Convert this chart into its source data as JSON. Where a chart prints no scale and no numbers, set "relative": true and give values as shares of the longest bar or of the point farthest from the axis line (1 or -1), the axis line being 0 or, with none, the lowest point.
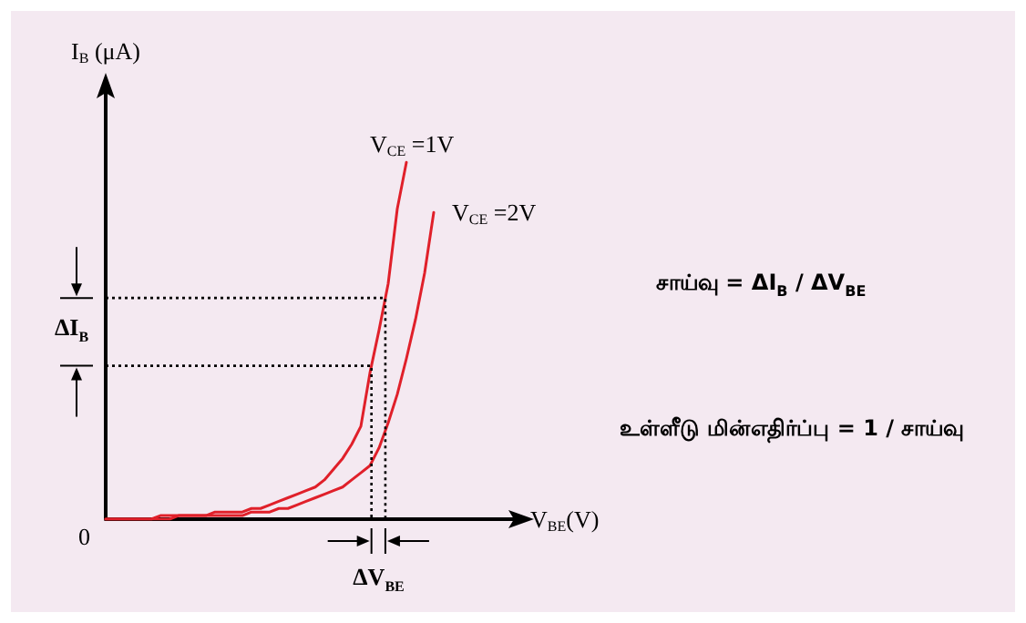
{
  "chart_data": {
    "type": "line",
    "relative": true,
    "xlabel": "V$_{BE}$(V)",
    "ylabel": "I$_{B}$ (μA)",
    "categories": [
      null,
      null,
      null,
      null,
      null,
      null,
      null,
      null,
      null,
      null,
      null,
      null,
      null,
      null,
      null,
      null,
      null,
      null,
      null,
      null,
      null,
      null,
      null,
      null,
      null,
      null,
      null,
      null,
      null,
      null,
      null,
      null,
      null,
      null,
      null,
      null,
      null,
      null,
      null,
      null,
      null,
      null,
      null,
      null,
      null
    ],
    "series": [
      {
        "name": "V$_{CE}$ =1V",
        "color": "#e0202a",
        "values": [
          0,
          0,
          0,
          0,
          0,
          0,
          0.01,
          0.01,
          0.01,
          0.01,
          0.01,
          0.01,
          0.02,
          0.02,
          0.02,
          0.02,
          0.03,
          0.03,
          0.04,
          0.05,
          0.06,
          0.07,
          0.08,
          0.09,
          0.11,
          0.14,
          0.17,
          0.21,
          0.26,
          0.41,
          0.53,
          0.66,
          0.87,
          1,
          null,
          null,
          null,
          null,
          null,
          null,
          null,
          null,
          null,
          null,
          null
        ]
      },
      {
        "name": "V$_{CE}$ =2V",
        "color": "#e0202a",
        "values": [
          0,
          0,
          0,
          0,
          0,
          0,
          0,
          0,
          0.01,
          0.01,
          0.01,
          0.01,
          0.01,
          0.01,
          0.01,
          0.01,
          0.02,
          0.02,
          0.02,
          0.03,
          0.03,
          0.04,
          0.05,
          0.06,
          0.07,
          0.08,
          0.09,
          0.11,
          0.13,
          0.15,
          0.2,
          0.27,
          0.35,
          0.45,
          0.56,
          0.69,
          0.86,
          null,
          null,
          null,
          null,
          null,
          null,
          null,
          null
        ]
      }
    ],
    "ref_lines": [
      {
        "axis": "y",
        "value": 0.62,
        "line_style": "dotted",
        "color": "#000000"
      },
      {
        "axis": "y",
        "value": 0.43,
        "line_style": "dotted",
        "color": "#000000"
      }
    ],
    "annotations": [
      "0",
      "ΔI$_{B}$",
      "ΔV$_{BE}$",
      "சாய்வு = ΔI$_{B}$ / ΔV$_{BE}$",
      "உள்ளீடு மின்எதிர்ப்பு = 1 / சாய்வு"
    ],
    "legend": false,
    "grid": false,
    "marker": "none",
    "line_style": "solid"
  }
}
